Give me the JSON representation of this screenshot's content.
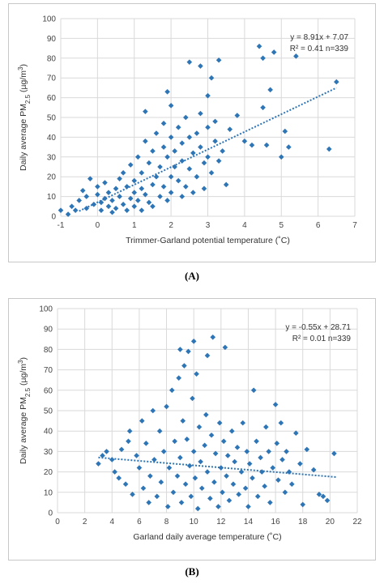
{
  "chart_data": [
    {
      "type": "scatter",
      "label": "(A)",
      "xlabel": "Trimmer-Garland potential temperature (˚C)",
      "ylabel": "Daily average PM2.5 (µg/m3)",
      "xlim": [
        -1,
        7
      ],
      "ylim": [
        0,
        100
      ],
      "xticks": [
        "-1",
        "0",
        "1",
        "2",
        "3",
        "4",
        "5",
        "6",
        "7"
      ],
      "yticks": [
        "0",
        "10",
        "20",
        "30",
        "40",
        "50",
        "60",
        "70",
        "80",
        "90",
        "100"
      ],
      "grid": true,
      "equation": "y = 8.91x + 7.07",
      "r2": "R² = 0.41 n=339",
      "trendline": {
        "slope": 8.91,
        "intercept": 7.07,
        "x_range": [
          -0.5,
          6.5
        ]
      },
      "points": [
        [
          -1,
          3
        ],
        [
          -0.8,
          1
        ],
        [
          -0.7,
          5
        ],
        [
          -0.6,
          3
        ],
        [
          -0.5,
          8
        ],
        [
          -0.4,
          13
        ],
        [
          -0.3,
          10
        ],
        [
          -0.3,
          4
        ],
        [
          -0.2,
          19
        ],
        [
          -0.1,
          6
        ],
        [
          0,
          11
        ],
        [
          0,
          15
        ],
        [
          0.1,
          7
        ],
        [
          0.1,
          3
        ],
        [
          0.2,
          17
        ],
        [
          0.2,
          9
        ],
        [
          0.3,
          5
        ],
        [
          0.3,
          12
        ],
        [
          0.4,
          2
        ],
        [
          0.4,
          8
        ],
        [
          0.5,
          14
        ],
        [
          0.5,
          4
        ],
        [
          0.6,
          10
        ],
        [
          0.6,
          19
        ],
        [
          0.7,
          6
        ],
        [
          0.7,
          22
        ],
        [
          0.8,
          3
        ],
        [
          0.8,
          15
        ],
        [
          0.9,
          9
        ],
        [
          0.9,
          26
        ],
        [
          1,
          12
        ],
        [
          1,
          5
        ],
        [
          1,
          18
        ],
        [
          1.1,
          8
        ],
        [
          1.1,
          30
        ],
        [
          1.2,
          14
        ],
        [
          1.2,
          3
        ],
        [
          1.2,
          22
        ],
        [
          1.3,
          11
        ],
        [
          1.3,
          38
        ],
        [
          1.3,
          53
        ],
        [
          1.4,
          7
        ],
        [
          1.4,
          27
        ],
        [
          1.5,
          16
        ],
        [
          1.5,
          33
        ],
        [
          1.5,
          5
        ],
        [
          1.6,
          20
        ],
        [
          1.6,
          42
        ],
        [
          1.7,
          10
        ],
        [
          1.7,
          25
        ],
        [
          1.8,
          35
        ],
        [
          1.8,
          15
        ],
        [
          1.8,
          47
        ],
        [
          1.9,
          8
        ],
        [
          1.9,
          30
        ],
        [
          1.9,
          63
        ],
        [
          2,
          20
        ],
        [
          2,
          40
        ],
        [
          2,
          12
        ],
        [
          2,
          56
        ],
        [
          2.1,
          25
        ],
        [
          2.1,
          33
        ],
        [
          2.2,
          18
        ],
        [
          2.2,
          45
        ],
        [
          2.3,
          10
        ],
        [
          2.3,
          37
        ],
        [
          2.3,
          28
        ],
        [
          2.4,
          50
        ],
        [
          2.4,
          15
        ],
        [
          2.5,
          78
        ],
        [
          2.5,
          40
        ],
        [
          2.5,
          24
        ],
        [
          2.6,
          32
        ],
        [
          2.6,
          12
        ],
        [
          2.7,
          42
        ],
        [
          2.7,
          20
        ],
        [
          2.8,
          76
        ],
        [
          2.8,
          52
        ],
        [
          2.8,
          35
        ],
        [
          2.9,
          27
        ],
        [
          2.9,
          14
        ],
        [
          3,
          61
        ],
        [
          3,
          45
        ],
        [
          3,
          30
        ],
        [
          3.1,
          70
        ],
        [
          3.1,
          22
        ],
        [
          3.2,
          38
        ],
        [
          3.2,
          48
        ],
        [
          3.3,
          79
        ],
        [
          3.3,
          28
        ],
        [
          3.4,
          33
        ],
        [
          3.5,
          16
        ],
        [
          3.6,
          44
        ],
        [
          3.8,
          51
        ],
        [
          4,
          38
        ],
        [
          4.2,
          36
        ],
        [
          4.4,
          86
        ],
        [
          4.5,
          55
        ],
        [
          4.5,
          80
        ],
        [
          4.6,
          36
        ],
        [
          4.7,
          64
        ],
        [
          4.8,
          83
        ],
        [
          5,
          30
        ],
        [
          5.1,
          43
        ],
        [
          5.2,
          35
        ],
        [
          5.4,
          81
        ],
        [
          6.3,
          34
        ],
        [
          6.5,
          68
        ]
      ]
    },
    {
      "type": "scatter",
      "label": "(B)",
      "xlabel": "Garland daily average temperature (˚C)",
      "ylabel": "Daily average PM2.5 (µg/m3)",
      "xlim": [
        0,
        22
      ],
      "ylim": [
        0,
        100
      ],
      "xticks": [
        "0",
        "2",
        "4",
        "6",
        "8",
        "10",
        "12",
        "14",
        "16",
        "18",
        "20",
        "22"
      ],
      "yticks": [
        "0",
        "10",
        "20",
        "30",
        "40",
        "50",
        "60",
        "70",
        "80",
        "90",
        "100"
      ],
      "grid": true,
      "equation": "y = -0.55x + 28.71",
      "r2": "R² = 0.01 n=339",
      "trendline": {
        "slope": -0.55,
        "intercept": 28.71,
        "x_range": [
          3,
          20.5
        ]
      },
      "points": [
        [
          3,
          24
        ],
        [
          3.3,
          28
        ],
        [
          3.6,
          30
        ],
        [
          4,
          26
        ],
        [
          4.2,
          20
        ],
        [
          4.5,
          17
        ],
        [
          4.7,
          31
        ],
        [
          5,
          14
        ],
        [
          5.2,
          35
        ],
        [
          5.3,
          40
        ],
        [
          5.5,
          9
        ],
        [
          5.8,
          28
        ],
        [
          6,
          22
        ],
        [
          6.2,
          45
        ],
        [
          6.3,
          12
        ],
        [
          6.5,
          34
        ],
        [
          6.7,
          5
        ],
        [
          6.8,
          18
        ],
        [
          7,
          50
        ],
        [
          7.1,
          26
        ],
        [
          7.3,
          8
        ],
        [
          7.5,
          40
        ],
        [
          7.6,
          15
        ],
        [
          7.8,
          30
        ],
        [
          8,
          52
        ],
        [
          8.1,
          3
        ],
        [
          8.2,
          22
        ],
        [
          8.4,
          60
        ],
        [
          8.5,
          10
        ],
        [
          8.6,
          35
        ],
        [
          8.8,
          18
        ],
        [
          8.9,
          66
        ],
        [
          9,
          80
        ],
        [
          9,
          27
        ],
        [
          9.1,
          5
        ],
        [
          9.2,
          45
        ],
        [
          9.3,
          72
        ],
        [
          9.4,
          14
        ],
        [
          9.5,
          36
        ],
        [
          9.6,
          79
        ],
        [
          9.7,
          23
        ],
        [
          9.8,
          8
        ],
        [
          9.9,
          56
        ],
        [
          10,
          30
        ],
        [
          10,
          84
        ],
        [
          10.1,
          17
        ],
        [
          10.2,
          68
        ],
        [
          10.3,
          2
        ],
        [
          10.4,
          42
        ],
        [
          10.5,
          25
        ],
        [
          10.6,
          12
        ],
        [
          10.8,
          33
        ],
        [
          10.9,
          48
        ],
        [
          11,
          77
        ],
        [
          11,
          20
        ],
        [
          11.2,
          7
        ],
        [
          11.3,
          38
        ],
        [
          11.4,
          86
        ],
        [
          11.5,
          15
        ],
        [
          11.6,
          29
        ],
        [
          11.8,
          3
        ],
        [
          11.9,
          44
        ],
        [
          12,
          22
        ],
        [
          12.1,
          10
        ],
        [
          12.2,
          35
        ],
        [
          12.3,
          81
        ],
        [
          12.4,
          18
        ],
        [
          12.5,
          28
        ],
        [
          12.6,
          6
        ],
        [
          12.8,
          40
        ],
        [
          12.9,
          14
        ],
        [
          13,
          25
        ],
        [
          13.2,
          32
        ],
        [
          13.3,
          9
        ],
        [
          13.5,
          20
        ],
        [
          13.6,
          44
        ],
        [
          13.8,
          12
        ],
        [
          13.9,
          30
        ],
        [
          14,
          3
        ],
        [
          14.1,
          24
        ],
        [
          14.3,
          17
        ],
        [
          14.4,
          60
        ],
        [
          14.6,
          35
        ],
        [
          14.7,
          8
        ],
        [
          14.9,
          27
        ],
        [
          15,
          20
        ],
        [
          15.2,
          13
        ],
        [
          15.3,
          42
        ],
        [
          15.5,
          30
        ],
        [
          15.6,
          5
        ],
        [
          15.8,
          22
        ],
        [
          16,
          53
        ],
        [
          16.1,
          34
        ],
        [
          16.2,
          16
        ],
        [
          16.4,
          44
        ],
        [
          16.5,
          26
        ],
        [
          16.7,
          10
        ],
        [
          16.8,
          30
        ],
        [
          17,
          20
        ],
        [
          17.2,
          14
        ],
        [
          17.5,
          39
        ],
        [
          17.8,
          24
        ],
        [
          18,
          4
        ],
        [
          18.3,
          31
        ],
        [
          18.8,
          21
        ],
        [
          19.2,
          9
        ],
        [
          19.5,
          8
        ],
        [
          19.8,
          6
        ],
        [
          20.3,
          29
        ]
      ]
    }
  ],
  "captions": {
    "a": "(A)",
    "b": "(B)"
  }
}
